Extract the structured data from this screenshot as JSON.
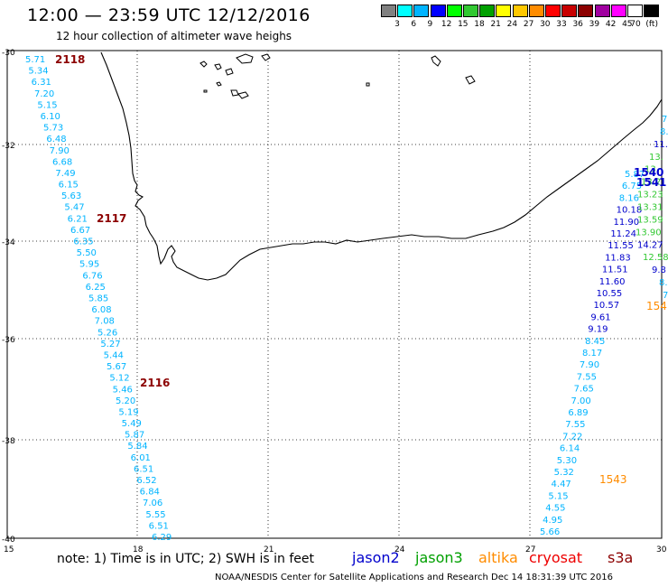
{
  "header": {
    "title": "12:00 — 23:59 UTC 12/12/2016",
    "subtitle": "12 hour collection of altimeter wave heighs"
  },
  "legend": {
    "colors": [
      "#808080",
      "#00ffff",
      "#00b4ff",
      "#0000ff",
      "#00ff00",
      "#32c832",
      "#00a000",
      "#ffff00",
      "#ffc800",
      "#ff8c00",
      "#ff0000",
      "#c80000",
      "#8c0000",
      "#a000a0",
      "#ff00ff",
      "#ffffff",
      "#000000"
    ],
    "ticks": [
      "3",
      "6",
      "9",
      "12",
      "15",
      "18",
      "21",
      "24",
      "27",
      "30",
      "33",
      "36",
      "39",
      "42",
      "45",
      "70",
      "(ft)"
    ]
  },
  "axes": {
    "lat_labels": [
      "-30",
      "-32",
      "-34",
      "-36",
      "-38",
      "-40"
    ],
    "lon_labels": [
      "15",
      "18",
      "21",
      "24",
      "27",
      "30"
    ]
  },
  "footer": {
    "note": "note: 1) Time is in UTC; 2) SWH is in feet",
    "satellites": [
      {
        "name": "jason2",
        "color": "#0000cc"
      },
      {
        "name": "jason3",
        "color": "#00a000"
      },
      {
        "name": "altika",
        "color": "#ff8c00"
      },
      {
        "name": "cryosat",
        "color": "#ee0000"
      },
      {
        "name": "s3a",
        "color": "#8c0000"
      }
    ],
    "credit": "NOAA/NESDIS Center for Satellite Applications and Research    Dec 14 18:31:39 UTC 2016"
  },
  "passes": [
    {
      "label": "2118",
      "color": "#8c0000"
    },
    {
      "label": "2117",
      "color": "#8c0000"
    },
    {
      "label": "2116",
      "color": "#8c0000"
    },
    {
      "label": "1540",
      "color": "#0000cc"
    },
    {
      "label": "1541",
      "color": "#0000cc"
    },
    {
      "label": "154",
      "color": "#ff8c00"
    },
    {
      "label": "1543",
      "color": "#ff8c00"
    }
  ],
  "track_west": {
    "color": "#00b4ff",
    "values": [
      "5.71",
      "5.34",
      "6.31",
      "7.20",
      "5.15",
      "6.10",
      "5.73",
      "6.48",
      "7.90",
      "6.68",
      "7.49",
      "6.15",
      "5.63",
      "5.47",
      "6.21",
      "6.67",
      "6.35",
      "5.50",
      "5.95",
      "6.76",
      "6.25",
      "5.85",
      "6.08",
      "7.08",
      "5.26",
      "5.27",
      "5.44",
      "5.67",
      "5.12",
      "5.46",
      "5.20",
      "5.19",
      "5.49",
      "5.87",
      "5.84",
      "6.01",
      "6.51",
      "6.52",
      "6.84",
      "7.06",
      "5.55",
      "6.51",
      "6.29"
    ]
  },
  "track_east": {
    "values": [
      {
        "v": "5.87",
        "c": "#00b4ff"
      },
      {
        "v": "6.75",
        "c": "#00b4ff"
      },
      {
        "v": "8.16",
        "c": "#00b4ff"
      },
      {
        "v": "10.18",
        "c": "#0000cc"
      },
      {
        "v": "11.90",
        "c": "#0000cc"
      },
      {
        "v": "11.24",
        "c": "#0000cc"
      },
      {
        "v": "11.55",
        "c": "#0000cc"
      },
      {
        "v": "11.83",
        "c": "#0000cc"
      },
      {
        "v": "11.51",
        "c": "#0000cc"
      },
      {
        "v": "11.60",
        "c": "#0000cc"
      },
      {
        "v": "10.55",
        "c": "#0000cc"
      },
      {
        "v": "10.57",
        "c": "#0000cc"
      },
      {
        "v": "9.61",
        "c": "#0000cc"
      },
      {
        "v": "9.19",
        "c": "#0000cc"
      },
      {
        "v": "8.45",
        "c": "#00b4ff"
      },
      {
        "v": "8.17",
        "c": "#00b4ff"
      },
      {
        "v": "7.90",
        "c": "#00b4ff"
      },
      {
        "v": "7.55",
        "c": "#00b4ff"
      },
      {
        "v": "7.65",
        "c": "#00b4ff"
      },
      {
        "v": "7.00",
        "c": "#00b4ff"
      },
      {
        "v": "6.89",
        "c": "#00b4ff"
      },
      {
        "v": "7.55",
        "c": "#00b4ff"
      },
      {
        "v": "7.22",
        "c": "#00b4ff"
      },
      {
        "v": "6.14",
        "c": "#00b4ff"
      },
      {
        "v": "5.30",
        "c": "#00b4ff"
      },
      {
        "v": "5.32",
        "c": "#00b4ff"
      },
      {
        "v": "4.47",
        "c": "#00b4ff"
      },
      {
        "v": "5.15",
        "c": "#00b4ff"
      },
      {
        "v": "4.55",
        "c": "#00b4ff"
      },
      {
        "v": "4.95",
        "c": "#00b4ff"
      },
      {
        "v": "5.66",
        "c": "#00b4ff"
      }
    ]
  },
  "track_edge": {
    "values": [
      {
        "v": "7",
        "c": "#00b4ff"
      },
      {
        "v": "8.",
        "c": "#00b4ff"
      },
      {
        "v": "11.",
        "c": "#0000cc"
      },
      {
        "v": "13.",
        "c": "#32c832"
      },
      {
        "v": "13.",
        "c": "#32c832"
      },
      {
        "v": "13.2",
        "c": "#32c832"
      },
      {
        "v": "13.23",
        "c": "#32c832"
      },
      {
        "v": "13.31",
        "c": "#32c832"
      },
      {
        "v": "13.59",
        "c": "#32c832"
      },
      {
        "v": "13.90",
        "c": "#32c832"
      },
      {
        "v": "14.27",
        "c": "#0000cc"
      },
      {
        "v": "12.58",
        "c": "#32c832"
      },
      {
        "v": "9.8",
        "c": "#0000cc"
      },
      {
        "v": "8.",
        "c": "#00b4ff"
      },
      {
        "v": "7",
        "c": "#00b4ff"
      }
    ]
  }
}
